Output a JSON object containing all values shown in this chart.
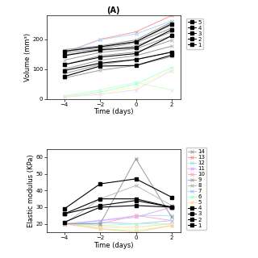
{
  "top_chart": {
    "title": "(A)",
    "xlabel": "Time (days)",
    "ylabel": "Volume (mm³)",
    "x": [
      -4,
      -2,
      0,
      2
    ],
    "gray_series": [
      {
        "values": [
          165,
          175,
          195,
          255
        ],
        "lw": 0.8
      },
      {
        "values": [
          160,
          170,
          190,
          245
        ],
        "lw": 0.8
      },
      {
        "values": [
          155,
          165,
          185,
          235
        ],
        "lw": 0.8
      },
      {
        "values": [
          145,
          160,
          175,
          220
        ],
        "lw": 0.8
      },
      {
        "values": [
          130,
          155,
          165,
          210
        ],
        "lw": 0.8
      },
      {
        "values": [
          115,
          145,
          155,
          195
        ],
        "lw": 0.8
      },
      {
        "values": [
          100,
          130,
          145,
          175
        ],
        "lw": 0.8
      },
      {
        "values": [
          85,
          115,
          130,
          155
        ],
        "lw": 0.8
      },
      {
        "values": [
          70,
          95,
          110,
          140
        ],
        "lw": 0.8
      }
    ],
    "black_dot_series": [
      {
        "values": [
          160,
          175,
          190,
          250
        ],
        "label": "5"
      },
      {
        "values": [
          145,
          165,
          170,
          230
        ],
        "label": "4"
      },
      {
        "values": [
          115,
          140,
          150,
          210
        ],
        "label": "3"
      },
      {
        "values": [
          95,
          120,
          130,
          155
        ],
        "label": "2"
      },
      {
        "values": [
          75,
          110,
          110,
          145
        ],
        "label": "1"
      }
    ],
    "colored_x_series": [
      {
        "values": [
          155,
          200,
          225,
          280
        ],
        "color": "#ff9999"
      },
      {
        "values": [
          155,
          200,
          220,
          265
        ],
        "color": "#aaddff"
      },
      {
        "values": [
          10,
          30,
          55,
          30
        ],
        "color": "#ddffaa"
      },
      {
        "values": [
          8,
          22,
          50,
          105
        ],
        "color": "#aaffdd"
      },
      {
        "values": [
          8,
          18,
          38,
          100
        ],
        "color": "#ffddaa"
      },
      {
        "values": [
          6,
          15,
          30,
          95
        ],
        "color": "#ddaaff"
      }
    ],
    "ylim": [
      0,
      280
    ],
    "yticks": [
      0,
      100,
      200
    ],
    "xticks": [
      -4,
      -2,
      0,
      2
    ],
    "xlim": [
      -5,
      2.5
    ]
  },
  "bottom_chart": {
    "ylabel": "Elastic modulus (KPa)",
    "x": [
      -4,
      -2,
      0,
      2
    ],
    "gray_x_series": [
      {
        "values": [
          20,
          20,
          59,
          24
        ]
      },
      {
        "values": [
          20,
          35,
          43,
          31
        ]
      }
    ],
    "black_dot_series": [
      {
        "values": [
          29,
          44,
          47,
          36
        ],
        "label": "4"
      },
      {
        "values": [
          26,
          35,
          35,
          30
        ],
        "label": "3"
      },
      {
        "values": [
          26,
          31,
          34,
          30
        ],
        "label": "2"
      },
      {
        "values": [
          21,
          30,
          31,
          30
        ],
        "label": "1"
      }
    ],
    "colored_x_series": [
      {
        "values": [
          20,
          22,
          25,
          25
        ],
        "color": "#aaddff"
      },
      {
        "values": [
          20,
          22,
          24,
          30
        ],
        "color": "#ddaaff"
      },
      {
        "values": [
          20,
          20,
          25,
          22
        ],
        "color": "#ffaacc"
      },
      {
        "values": [
          20,
          21,
          20,
          22
        ],
        "color": "#aaccff"
      },
      {
        "values": [
          20,
          18,
          20,
          20
        ],
        "color": "#aaffcc"
      },
      {
        "values": [
          20,
          18,
          18,
          20
        ],
        "color": "#ffddaa"
      },
      {
        "values": [
          20,
          17,
          16,
          19
        ],
        "color": "#ccffaa"
      },
      {
        "values": [
          20,
          17,
          15,
          19
        ],
        "color": "#ffccaa"
      }
    ],
    "ylim": [
      15,
      65
    ],
    "yticks": [
      20,
      30,
      40,
      50,
      60
    ],
    "xticks": [
      -4,
      -2,
      0,
      2
    ],
    "xlim": [
      -5,
      2.5
    ]
  },
  "legend_top": {
    "labels": [
      "5",
      "4",
      "3",
      "2",
      "1"
    ]
  },
  "legend_bottom": {
    "labels_x": [
      "14",
      "13",
      "12",
      "11",
      "10",
      "9",
      "8",
      "7",
      "6",
      "5"
    ],
    "colors_x": [
      "#aaaaaa",
      "#aaaaaa",
      "#aaddff",
      "#ddaaff",
      "#ffaacc",
      "#aaccff",
      "#aaaaaa",
      "#aaaaaa",
      "#aaaaaa",
      "#aaaaaa"
    ],
    "labels_sq": [
      "4",
      "3",
      "2",
      "1"
    ]
  }
}
